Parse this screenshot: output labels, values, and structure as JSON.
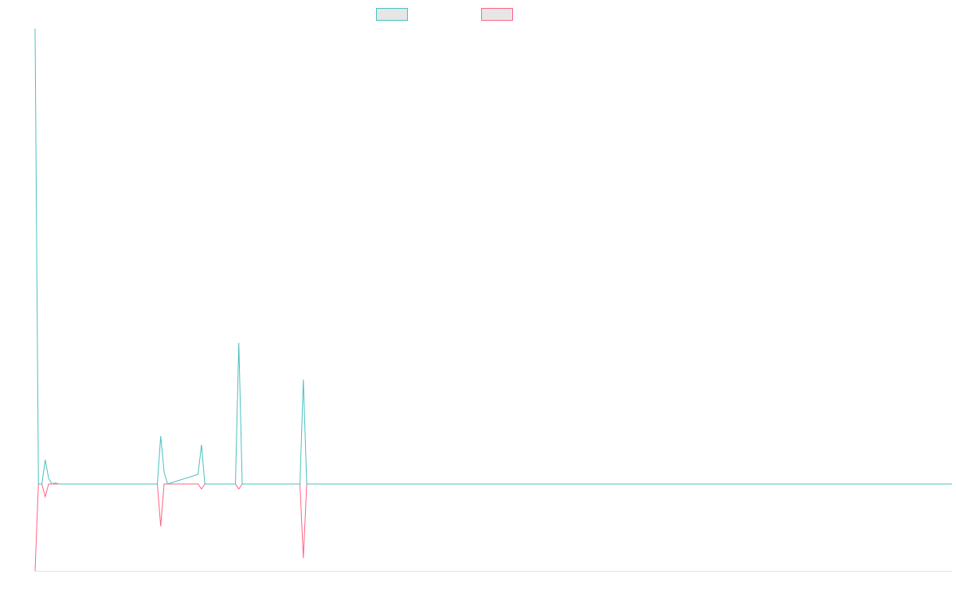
{
  "chart_data": {
    "type": "line",
    "x": [
      0,
      1,
      2,
      3,
      4,
      5,
      6,
      7,
      36,
      37,
      38,
      39,
      48,
      49,
      50,
      59,
      60,
      61,
      78,
      79,
      80,
      270
    ],
    "xlim": [
      0,
      270
    ],
    "ylim": [
      -19.1,
      100
    ],
    "legend": "top",
    "legend_fill": "#e6e6e6",
    "axis_color": "#e0e0e0",
    "series": [
      {
        "color": "#4bc0c0",
        "values": [
          100,
          0,
          0,
          5.3,
          1.2,
          0,
          0.2,
          0,
          0,
          10.5,
          2.6,
          0,
          2.1,
          8.6,
          0,
          0,
          31,
          0,
          0,
          22.9,
          0,
          0
        ]
      },
      {
        "color": "#ff6384",
        "values": [
          -19.1,
          0,
          0,
          -2.8,
          0,
          0,
          0,
          0,
          0,
          -9.3,
          0,
          0,
          0,
          -1.1,
          0,
          0,
          -1.1,
          0,
          0,
          -16.3,
          0,
          0
        ]
      }
    ]
  }
}
